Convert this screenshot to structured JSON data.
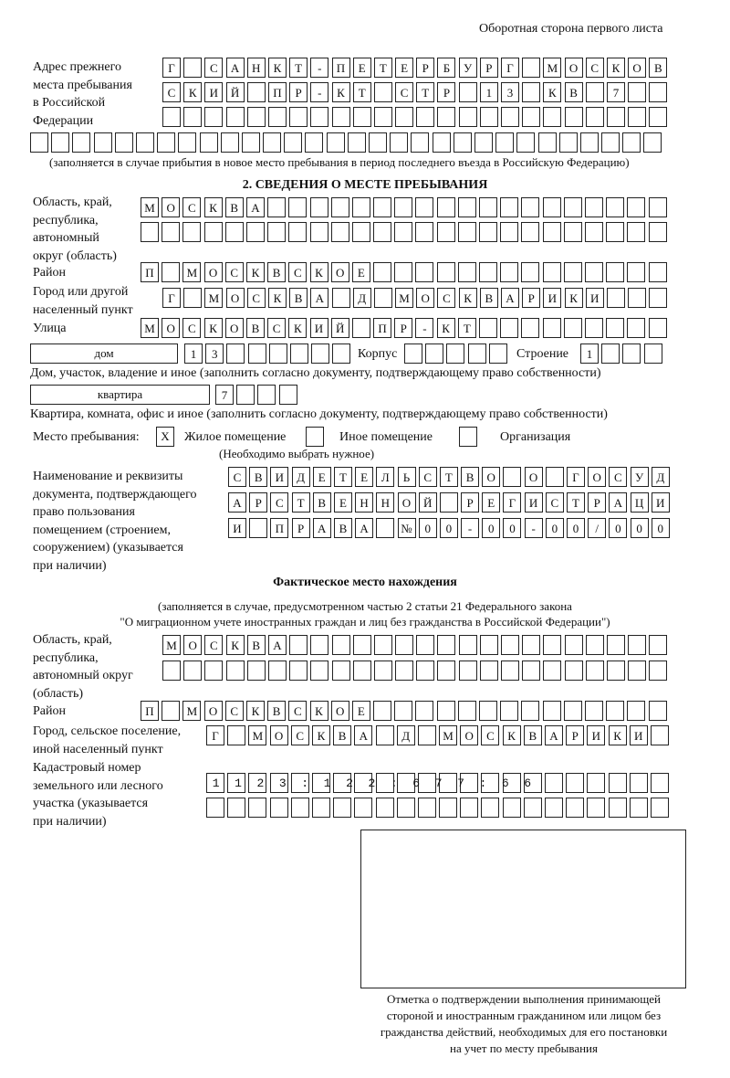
{
  "header": {
    "side_label": "Оборотная сторона первого листа"
  },
  "prev_address": {
    "label": [
      "Адрес прежнего",
      "места пребывания",
      "в Российской",
      "Федерации"
    ],
    "rows": [
      "Г САНКТ-ПЕТЕРБУРГ МОСКОВ",
      "СКИЙ ПР-КТ СТР 13 КВ 7  ",
      "                        ",
      "                              "
    ],
    "note": "(заполняется в случае прибытия в новое место пребывания в период последнего въезда в Российскую Федерацию)"
  },
  "section2": {
    "title": "2. СВЕДЕНИЯ О МЕСТЕ ПРЕБЫВАНИЯ",
    "region_label": [
      "Область, край,",
      "республика,",
      "автономный",
      "округ (область)"
    ],
    "region_rows": [
      "МОСКВА                   ",
      "                         "
    ],
    "district_label": "Район",
    "district_row": "П МОСКВСКОЕ              ",
    "city_label": [
      "Город или другой",
      "населенный пункт"
    ],
    "city_row": "Г МОСКВА Д МОСКВАРИКИ   ",
    "street_label": "Улица",
    "street_row": "МОСКОВСКИЙ ПР-КТ         ",
    "house_type": "дом",
    "house_row": "13      ",
    "korpus_label": "Корпус",
    "korpus_row": "     ",
    "building_label": "Строение",
    "building_row": "1   ",
    "house_note": "Дом, участок, владение и иное (заполнить согласно документу, подтверждающему право собственности)",
    "flat_type": "квартира",
    "flat_row": "7   ",
    "flat_note": "Квартира, комната, офис и иное (заполнить согласно документу, подтверждающему право собственности)",
    "place_label": "Место пребывания:",
    "place_options": [
      {
        "label": "Жилое помещение",
        "mark": "Х",
        "checked": true
      },
      {
        "label": "Иное помещение",
        "mark": "",
        "checked": false
      },
      {
        "label": "Организация",
        "mark": "",
        "checked": false
      }
    ],
    "place_hint": "(Необходимо выбрать нужное)",
    "doc_label": [
      "Наименование и реквизиты",
      "документа, подтверждающего",
      "право пользования",
      "помещением (строением,",
      "сооружением) (указывается",
      "при наличии)"
    ],
    "doc_rows": [
      "СВИДЕТЕЛЬСТВО О ГОСУД",
      "АРСТВЕННОЙ РЕГИСТРАЦИ",
      "И ПРАВА №00-00-00/000"
    ]
  },
  "actual": {
    "title": "Фактическое место нахождения",
    "note": [
      "(заполняется в случае, предусмотренном частью 2 статьи 21 Федерального закона",
      "\"О миграционном учете иностранных граждан и лиц без гражданства в Российской Федерации\")"
    ],
    "region_label": [
      "Область, край,",
      "республика,",
      "автономный округ",
      "(область)"
    ],
    "region_rows": [
      "МОСКВА                  ",
      "                        "
    ],
    "district_label": "Район",
    "district_row": "П МОСКВСКОЕ              ",
    "city_label": [
      "Город, сельское поселение,",
      "иной населенный пункт"
    ],
    "city_row": "Г МОСКВА Д МОСКВАРИКИ ",
    "cadastre_label": [
      "Кадастровый номер",
      "земельного или лесного",
      "участка (указывается",
      "при наличии)"
    ],
    "cadastre_rows": [
      "1123:122:677:66       ",
      "                      "
    ]
  },
  "stamp": {
    "caption": [
      "Отметка о подтверждении выполнения принимающей",
      "стороной и иностранным гражданином или лицом без",
      "гражданства действий, необходимых для его постановки",
      "на учет по месту пребывания"
    ]
  }
}
